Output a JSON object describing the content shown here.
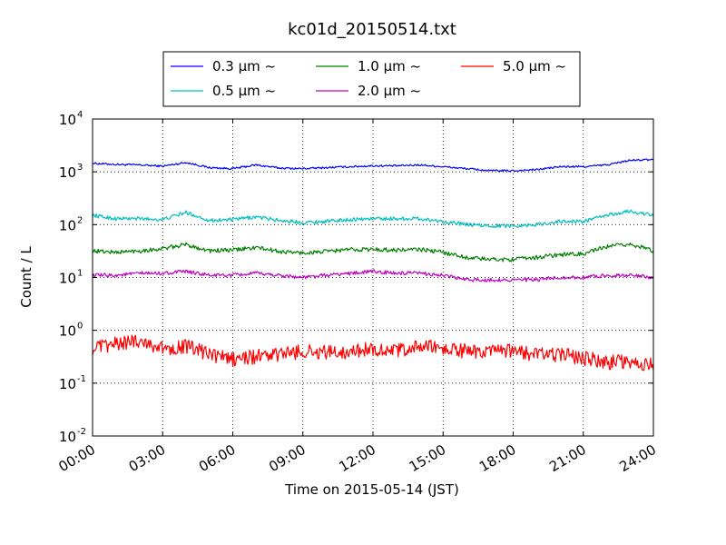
{
  "chart_data": {
    "type": "line",
    "title": "kc01d_20150514.txt",
    "xlabel": "Time on 2015-05-14 (JST)",
    "ylabel": "Count / L",
    "yscale": "log",
    "ylim": [
      0.01,
      10000
    ],
    "xlim": [
      "00:00",
      "24:00"
    ],
    "grid": true,
    "legend_position": "top-center",
    "xticks": [
      "00:00",
      "03:00",
      "06:00",
      "09:00",
      "12:00",
      "15:00",
      "18:00",
      "21:00",
      "24:00"
    ],
    "yticks": [
      {
        "base": "10",
        "exp": "-2",
        "value": 0.01
      },
      {
        "base": "10",
        "exp": "-1",
        "value": 0.1
      },
      {
        "base": "10",
        "exp": "0",
        "value": 1
      },
      {
        "base": "10",
        "exp": "1",
        "value": 10
      },
      {
        "base": "10",
        "exp": "2",
        "value": 100
      },
      {
        "base": "10",
        "exp": "3",
        "value": 1000
      },
      {
        "base": "10",
        "exp": "4",
        "value": 10000
      }
    ],
    "x": [
      "00:00",
      "01:00",
      "02:00",
      "03:00",
      "04:00",
      "05:00",
      "06:00",
      "07:00",
      "08:00",
      "09:00",
      "10:00",
      "11:00",
      "12:00",
      "13:00",
      "14:00",
      "15:00",
      "16:00",
      "17:00",
      "18:00",
      "19:00",
      "20:00",
      "21:00",
      "22:00",
      "23:00",
      "24:00"
    ],
    "series": [
      {
        "name": "0.3 μm ~",
        "color": "#0000ff",
        "values": [
          1450,
          1380,
          1350,
          1280,
          1500,
          1200,
          1150,
          1350,
          1180,
          1150,
          1200,
          1250,
          1300,
          1300,
          1350,
          1250,
          1150,
          1050,
          1050,
          1100,
          1250,
          1250,
          1350,
          1650,
          1700
        ]
      },
      {
        "name": "0.5 μm ~",
        "color": "#00bfbf",
        "values": [
          150,
          130,
          130,
          125,
          170,
          120,
          125,
          140,
          120,
          110,
          115,
          125,
          130,
          130,
          130,
          115,
          100,
          95,
          95,
          100,
          115,
          115,
          150,
          180,
          150
        ]
      },
      {
        "name": "1.0 μm ~",
        "color": "#008000",
        "values": [
          32,
          30,
          32,
          35,
          42,
          32,
          33,
          37,
          31,
          29,
          31,
          34,
          34,
          33,
          34,
          30,
          24,
          22,
          22,
          24,
          27,
          28,
          38,
          43,
          32
        ]
      },
      {
        "name": "2.0 μm ~",
        "color": "#bf00bf",
        "values": [
          11,
          11,
          12,
          12,
          13,
          11,
          11,
          12,
          11,
          10,
          11,
          12,
          13,
          12,
          12,
          11,
          9,
          9,
          9,
          9,
          10,
          10,
          11,
          11,
          10
        ]
      },
      {
        "name": "5.0 μm ~",
        "color": "#ff0000",
        "values": [
          0.45,
          0.55,
          0.65,
          0.45,
          0.5,
          0.35,
          0.28,
          0.32,
          0.35,
          0.4,
          0.38,
          0.4,
          0.45,
          0.4,
          0.5,
          0.45,
          0.4,
          0.38,
          0.4,
          0.35,
          0.35,
          0.3,
          0.25,
          0.25,
          0.22
        ]
      }
    ]
  }
}
